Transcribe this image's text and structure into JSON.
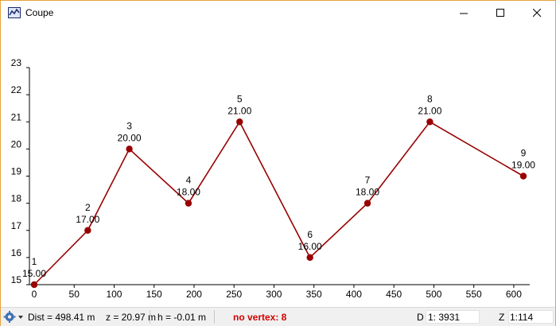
{
  "window": {
    "title": "Coupe",
    "icon": "profile-chart-icon",
    "controls": [
      "minimize-icon",
      "maximize-icon",
      "close-icon"
    ]
  },
  "chart_data": {
    "type": "line",
    "title": "",
    "xlabel": "",
    "ylabel": "",
    "xlim": [
      0,
      620
    ],
    "ylim": [
      15,
      23
    ],
    "x_ticks": [
      0,
      50,
      100,
      150,
      200,
      250,
      300,
      350,
      400,
      450,
      500,
      550,
      600
    ],
    "y_ticks": [
      15,
      16,
      17,
      18,
      19,
      20,
      21,
      22,
      23
    ],
    "grid": false,
    "color": "#990000",
    "points": [
      {
        "id": "1",
        "x": 0,
        "y": 15.0,
        "label": "15.00"
      },
      {
        "id": "2",
        "x": 67,
        "y": 17.0,
        "label": "17.00"
      },
      {
        "id": "3",
        "x": 119,
        "y": 20.0,
        "label": "20.00"
      },
      {
        "id": "4",
        "x": 193,
        "y": 18.0,
        "label": "18.00"
      },
      {
        "id": "5",
        "x": 257,
        "y": 21.0,
        "label": "21.00"
      },
      {
        "id": "6",
        "x": 345,
        "y": 16.0,
        "label": "16.00"
      },
      {
        "id": "7",
        "x": 417,
        "y": 18.0,
        "label": "18.00"
      },
      {
        "id": "8",
        "x": 495,
        "y": 21.0,
        "label": "21.00"
      },
      {
        "id": "9",
        "x": 612,
        "y": 19.0,
        "label": "19.00"
      }
    ]
  },
  "statusbar": {
    "dist": "Dist = 498.41 m",
    "z": "z = 20.97 m",
    "h": "h = -0.01 m",
    "vertex": "no vertex: 8",
    "d_label": "D",
    "d_value": "1: 3931",
    "z_label": "Z",
    "z_value": "1:114"
  }
}
